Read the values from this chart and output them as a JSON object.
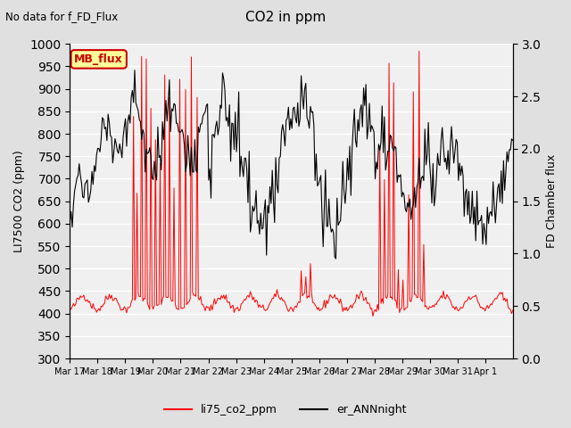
{
  "title": "CO2 in ppm",
  "subtitle": "No data for f_FD_Flux",
  "ylabel_left": "LI7500 CO2 (ppm)",
  "ylabel_right": "FD Chamber flux",
  "ylim_left": [
    300,
    1000
  ],
  "ylim_right": [
    0.0,
    3.0
  ],
  "legend_label1": "li75_co2_ppm",
  "legend_label2": "er_ANNnight",
  "legend_box_label": "MB_flux",
  "legend_box_color": "#ffff99",
  "legend_box_edge": "#cc0000",
  "line1_color": "#ff0000",
  "line2_color": "#000000",
  "x_tick_labels": [
    "Mar 17",
    "Mar 18",
    "Mar 19",
    "Mar 20",
    "Mar 21",
    "Mar 22",
    "Mar 23",
    "Mar 24",
    "Mar 25",
    "Mar 26",
    "Mar 27",
    "Mar 28",
    "Mar 29",
    "Mar 30",
    "Mar 31",
    "Apr 1"
  ],
  "background_color": "#f0f0f0",
  "grid_color": "#ffffff",
  "yticks_left": [
    300,
    350,
    400,
    450,
    500,
    550,
    600,
    650,
    700,
    750,
    800,
    850,
    900,
    950,
    1000
  ],
  "yticks_right": [
    0.0,
    0.5,
    1.0,
    1.5,
    2.0,
    2.5,
    3.0
  ]
}
